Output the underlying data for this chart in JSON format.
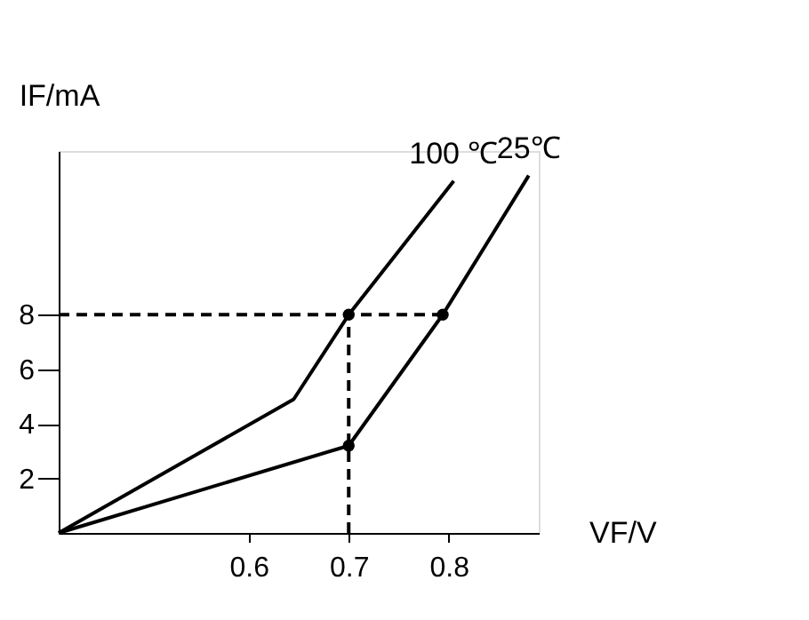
{
  "chart_data": {
    "type": "line",
    "xlabel": "VF/V",
    "ylabel": "IF/mA",
    "xlim": [
      0.41,
      0.89
    ],
    "ylim": [
      0,
      14
    ],
    "xticks": [
      0.6,
      0.7,
      0.8
    ],
    "yticks": [
      2,
      4,
      6,
      8
    ],
    "grid": false,
    "series": [
      {
        "name": "100 ℃",
        "color": "#000000",
        "x": [
          0.41,
          0.645,
          0.7,
          0.805
        ],
        "values": [
          0,
          4.9,
          8,
          12.9
        ],
        "marker": "none",
        "line_style": "solid"
      },
      {
        "name": "25℃",
        "color": "#000000",
        "x": [
          0.41,
          0.7,
          0.794,
          0.88
        ],
        "values": [
          0,
          3.2,
          8,
          13.1
        ],
        "marker": "none",
        "line_style": "solid"
      },
      {
        "color": "#000000",
        "x": [
          0.41,
          0.794
        ],
        "values": [
          8,
          8
        ],
        "marker": "none",
        "line_style": "dashed"
      },
      {
        "color": "#000000",
        "x": [
          0.7,
          0.7
        ],
        "values": [
          0,
          8
        ],
        "marker": "none",
        "line_style": "dashed"
      },
      {
        "type": "scatter",
        "color": "#000000",
        "x": [
          0.7,
          0.7,
          0.794
        ],
        "values": [
          8,
          3.2,
          8
        ],
        "marker": "circle"
      }
    ]
  }
}
